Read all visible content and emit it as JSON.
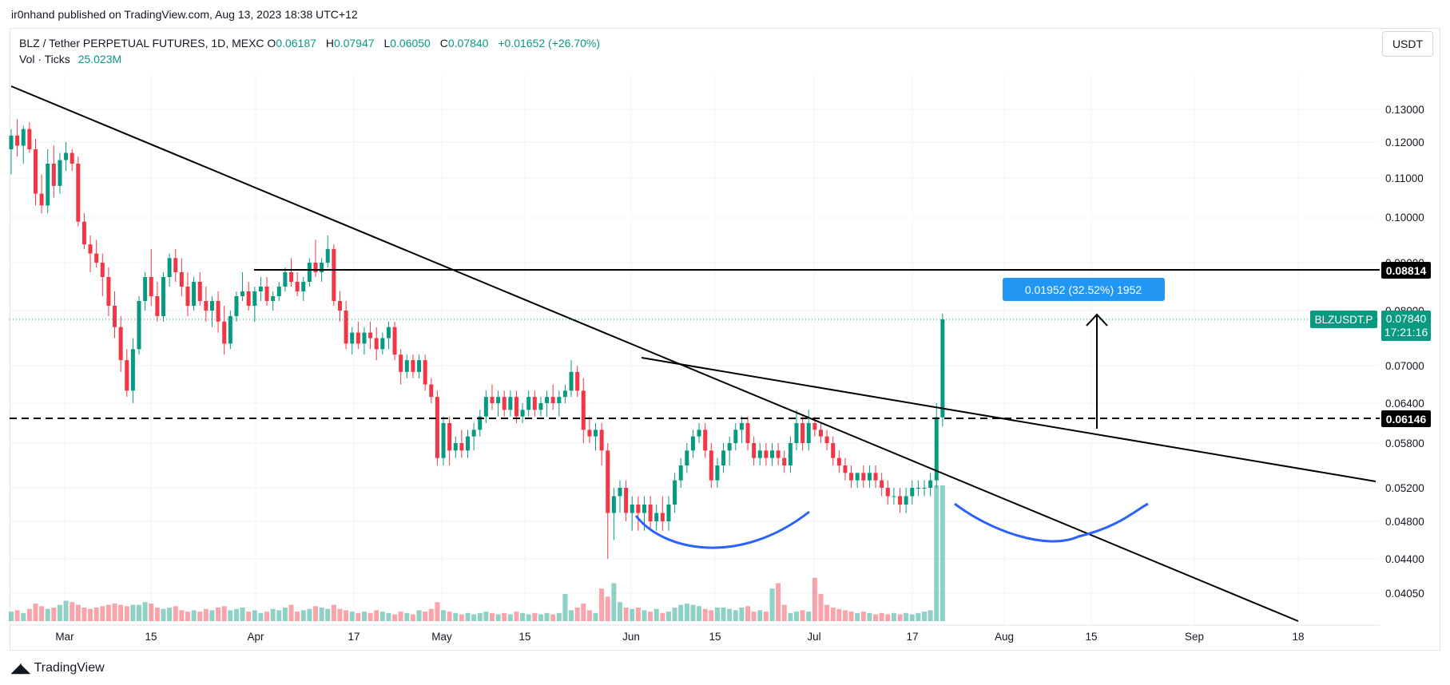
{
  "header": {
    "published": "ir0nhand published on TradingView.com, Aug 13, 2023 18:38 UTC+12"
  },
  "legend": {
    "symbol": "BLZ / Tether PERPETUAL FUTURES, 1D, MEXC",
    "o_label": "O",
    "o": "0.06187",
    "h_label": "H",
    "h": "0.07947",
    "l_label": "L",
    "l": "0.06050",
    "c_label": "C",
    "c": "0.07840",
    "change": "+0.01652 (+26.70%)",
    "vol_label": "Vol · Ticks",
    "vol": "25.023M"
  },
  "currency_button": "USDT",
  "footer": {
    "brand": "TradingView"
  },
  "colors": {
    "up": "#089981",
    "down": "#f23645",
    "measure": "#2962ff",
    "curve": "#2962ff"
  },
  "chart_data": {
    "type": "candlestick",
    "title": "BLZ / Tether PERPETUAL FUTURES, 1D, MEXC",
    "y_ticks": [
      "0.13000",
      "0.12000",
      "0.11000",
      "0.10000",
      "0.09000",
      "0.08000",
      "0.07000",
      "0.06400",
      "0.05800",
      "0.05200",
      "0.04800",
      "0.04400",
      "0.04050"
    ],
    "x_ticks": [
      "Mar",
      "15",
      "Apr",
      "17",
      "May",
      "15",
      "Jun",
      "15",
      "Jul",
      "17",
      "Aug",
      "15",
      "Sep",
      "18"
    ],
    "ohlc": [
      [
        0.118,
        0.124,
        0.111,
        0.122
      ],
      [
        0.122,
        0.127,
        0.116,
        0.119
      ],
      [
        0.119,
        0.125,
        0.114,
        0.124
      ],
      [
        0.124,
        0.126,
        0.117,
        0.118
      ],
      [
        0.118,
        0.121,
        0.103,
        0.106
      ],
      [
        0.106,
        0.111,
        0.101,
        0.103
      ],
      [
        0.103,
        0.118,
        0.101,
        0.114
      ],
      [
        0.114,
        0.119,
        0.105,
        0.108
      ],
      [
        0.108,
        0.117,
        0.106,
        0.115
      ],
      [
        0.115,
        0.12,
        0.112,
        0.117
      ],
      [
        0.117,
        0.118,
        0.112,
        0.114
      ],
      [
        0.114,
        0.116,
        0.098,
        0.099
      ],
      [
        0.099,
        0.101,
        0.093,
        0.094
      ],
      [
        0.094,
        0.096,
        0.088,
        0.092
      ],
      [
        0.092,
        0.095,
        0.089,
        0.09
      ],
      [
        0.09,
        0.092,
        0.083,
        0.087
      ],
      [
        0.087,
        0.089,
        0.079,
        0.081
      ],
      [
        0.081,
        0.084,
        0.075,
        0.077
      ],
      [
        0.077,
        0.079,
        0.069,
        0.071
      ],
      [
        0.071,
        0.073,
        0.065,
        0.066
      ],
      [
        0.066,
        0.075,
        0.064,
        0.073
      ],
      [
        0.073,
        0.083,
        0.072,
        0.082
      ],
      [
        0.082,
        0.088,
        0.08,
        0.087
      ],
      [
        0.087,
        0.093,
        0.081,
        0.083
      ],
      [
        0.083,
        0.086,
        0.078,
        0.079
      ],
      [
        0.079,
        0.088,
        0.078,
        0.087
      ],
      [
        0.087,
        0.092,
        0.085,
        0.091
      ],
      [
        0.091,
        0.093,
        0.086,
        0.088
      ],
      [
        0.088,
        0.091,
        0.083,
        0.085
      ],
      [
        0.085,
        0.088,
        0.079,
        0.081
      ],
      [
        0.081,
        0.087,
        0.08,
        0.086
      ],
      [
        0.086,
        0.088,
        0.081,
        0.082
      ],
      [
        0.082,
        0.085,
        0.078,
        0.08
      ],
      [
        0.08,
        0.083,
        0.077,
        0.082
      ],
      [
        0.082,
        0.084,
        0.076,
        0.078
      ],
      [
        0.078,
        0.081,
        0.072,
        0.074
      ],
      [
        0.074,
        0.08,
        0.073,
        0.079
      ],
      [
        0.079,
        0.084,
        0.078,
        0.083
      ],
      [
        0.083,
        0.088,
        0.082,
        0.084
      ],
      [
        0.084,
        0.086,
        0.08,
        0.081
      ],
      [
        0.081,
        0.085,
        0.078,
        0.084
      ],
      [
        0.084,
        0.087,
        0.082,
        0.085
      ],
      [
        0.085,
        0.087,
        0.081,
        0.082
      ],
      [
        0.082,
        0.084,
        0.08,
        0.083
      ],
      [
        0.083,
        0.086,
        0.082,
        0.085
      ],
      [
        0.085,
        0.089,
        0.084,
        0.088
      ],
      [
        0.088,
        0.091,
        0.085,
        0.086
      ],
      [
        0.086,
        0.088,
        0.083,
        0.084
      ],
      [
        0.084,
        0.087,
        0.082,
        0.086
      ],
      [
        0.086,
        0.091,
        0.085,
        0.09
      ],
      [
        0.09,
        0.095,
        0.087,
        0.088
      ],
      [
        0.088,
        0.091,
        0.086,
        0.09
      ],
      [
        0.09,
        0.096,
        0.089,
        0.093
      ],
      [
        0.093,
        0.094,
        0.081,
        0.082
      ],
      [
        0.082,
        0.084,
        0.078,
        0.08
      ],
      [
        0.08,
        0.082,
        0.073,
        0.074
      ],
      [
        0.074,
        0.077,
        0.072,
        0.076
      ],
      [
        0.076,
        0.078,
        0.073,
        0.074
      ],
      [
        0.074,
        0.077,
        0.072,
        0.076
      ],
      [
        0.076,
        0.078,
        0.073,
        0.075
      ],
      [
        0.075,
        0.077,
        0.071,
        0.073
      ],
      [
        0.073,
        0.076,
        0.072,
        0.075
      ],
      [
        0.075,
        0.078,
        0.073,
        0.077
      ],
      [
        0.077,
        0.078,
        0.071,
        0.072
      ],
      [
        0.072,
        0.073,
        0.067,
        0.069
      ],
      [
        0.069,
        0.072,
        0.068,
        0.071
      ],
      [
        0.071,
        0.072,
        0.068,
        0.069
      ],
      [
        0.069,
        0.072,
        0.068,
        0.071
      ],
      [
        0.071,
        0.072,
        0.066,
        0.067
      ],
      [
        0.067,
        0.068,
        0.064,
        0.065
      ],
      [
        0.065,
        0.066,
        0.055,
        0.056
      ],
      [
        0.056,
        0.062,
        0.055,
        0.061
      ],
      [
        0.061,
        0.062,
        0.055,
        0.057
      ],
      [
        0.057,
        0.059,
        0.056,
        0.058
      ],
      [
        0.058,
        0.06,
        0.056,
        0.057
      ],
      [
        0.057,
        0.06,
        0.056,
        0.059
      ],
      [
        0.059,
        0.061,
        0.057,
        0.06
      ],
      [
        0.06,
        0.063,
        0.059,
        0.062
      ],
      [
        0.062,
        0.066,
        0.061,
        0.065
      ],
      [
        0.065,
        0.067,
        0.063,
        0.064
      ],
      [
        0.064,
        0.066,
        0.062,
        0.065
      ],
      [
        0.065,
        0.066,
        0.062,
        0.063
      ],
      [
        0.063,
        0.066,
        0.062,
        0.065
      ],
      [
        0.065,
        0.066,
        0.061,
        0.062
      ],
      [
        0.062,
        0.064,
        0.061,
        0.063
      ],
      [
        0.063,
        0.066,
        0.062,
        0.065
      ],
      [
        0.065,
        0.066,
        0.062,
        0.063
      ],
      [
        0.063,
        0.065,
        0.062,
        0.064
      ],
      [
        0.064,
        0.066,
        0.062,
        0.065
      ],
      [
        0.065,
        0.067,
        0.063,
        0.064
      ],
      [
        0.064,
        0.066,
        0.062,
        0.065
      ],
      [
        0.065,
        0.067,
        0.064,
        0.066
      ],
      [
        0.066,
        0.071,
        0.065,
        0.069
      ],
      [
        0.069,
        0.07,
        0.065,
        0.066
      ],
      [
        0.066,
        0.068,
        0.058,
        0.06
      ],
      [
        0.06,
        0.062,
        0.058,
        0.059
      ],
      [
        0.059,
        0.061,
        0.057,
        0.06
      ],
      [
        0.06,
        0.061,
        0.055,
        0.057
      ],
      [
        0.057,
        0.058,
        0.044,
        0.049
      ],
      [
        0.049,
        0.052,
        0.046,
        0.051
      ],
      [
        0.051,
        0.053,
        0.049,
        0.052
      ],
      [
        0.052,
        0.053,
        0.048,
        0.049
      ],
      [
        0.049,
        0.051,
        0.047,
        0.05
      ],
      [
        0.05,
        0.051,
        0.047,
        0.049
      ],
      [
        0.049,
        0.051,
        0.047,
        0.05
      ],
      [
        0.05,
        0.051,
        0.047,
        0.048
      ],
      [
        0.048,
        0.05,
        0.047,
        0.049
      ],
      [
        0.049,
        0.051,
        0.047,
        0.048
      ],
      [
        0.048,
        0.051,
        0.047,
        0.05
      ],
      [
        0.05,
        0.054,
        0.049,
        0.053
      ],
      [
        0.053,
        0.056,
        0.052,
        0.055
      ],
      [
        0.055,
        0.058,
        0.054,
        0.057
      ],
      [
        0.057,
        0.06,
        0.056,
        0.059
      ],
      [
        0.059,
        0.061,
        0.058,
        0.06
      ],
      [
        0.06,
        0.061,
        0.056,
        0.057
      ],
      [
        0.057,
        0.058,
        0.052,
        0.053
      ],
      [
        0.053,
        0.056,
        0.052,
        0.055
      ],
      [
        0.055,
        0.058,
        0.054,
        0.057
      ],
      [
        0.057,
        0.059,
        0.055,
        0.058
      ],
      [
        0.058,
        0.061,
        0.057,
        0.06
      ],
      [
        0.06,
        0.062,
        0.058,
        0.061
      ],
      [
        0.061,
        0.062,
        0.057,
        0.058
      ],
      [
        0.058,
        0.059,
        0.055,
        0.056
      ],
      [
        0.056,
        0.058,
        0.055,
        0.057
      ],
      [
        0.057,
        0.058,
        0.055,
        0.056
      ],
      [
        0.056,
        0.058,
        0.055,
        0.057
      ],
      [
        0.057,
        0.058,
        0.055,
        0.056
      ],
      [
        0.056,
        0.057,
        0.054,
        0.055
      ],
      [
        0.055,
        0.059,
        0.054,
        0.058
      ],
      [
        0.058,
        0.063,
        0.057,
        0.061
      ],
      [
        0.061,
        0.062,
        0.057,
        0.058
      ],
      [
        0.058,
        0.063,
        0.057,
        0.061
      ],
      [
        0.061,
        0.062,
        0.059,
        0.06
      ],
      [
        0.06,
        0.061,
        0.058,
        0.059
      ],
      [
        0.059,
        0.06,
        0.057,
        0.058
      ],
      [
        0.058,
        0.059,
        0.055,
        0.056
      ],
      [
        0.056,
        0.057,
        0.054,
        0.055
      ],
      [
        0.055,
        0.056,
        0.053,
        0.054
      ],
      [
        0.054,
        0.055,
        0.052,
        0.053
      ],
      [
        0.053,
        0.054,
        0.052,
        0.054
      ],
      [
        0.054,
        0.055,
        0.052,
        0.053
      ],
      [
        0.053,
        0.055,
        0.052,
        0.054
      ],
      [
        0.054,
        0.055,
        0.052,
        0.053
      ],
      [
        0.053,
        0.054,
        0.051,
        0.052
      ],
      [
        0.052,
        0.053,
        0.05,
        0.051
      ],
      [
        0.051,
        0.052,
        0.05,
        0.051
      ],
      [
        0.051,
        0.052,
        0.049,
        0.05
      ],
      [
        0.05,
        0.052,
        0.049,
        0.051
      ],
      [
        0.051,
        0.053,
        0.05,
        0.052
      ],
      [
        0.052,
        0.053,
        0.051,
        0.052
      ],
      [
        0.052,
        0.053,
        0.051,
        0.052
      ],
      [
        0.052,
        0.054,
        0.051,
        0.053
      ],
      [
        0.053,
        0.064,
        0.052,
        0.0619
      ],
      [
        0.06187,
        0.07947,
        0.0605,
        0.0784
      ]
    ],
    "volume_heights": [
      0.07,
      0.08,
      0.06,
      0.09,
      0.13,
      0.11,
      0.09,
      0.1,
      0.12,
      0.15,
      0.14,
      0.12,
      0.1,
      0.09,
      0.1,
      0.11,
      0.12,
      0.13,
      0.12,
      0.11,
      0.12,
      0.12,
      0.14,
      0.13,
      0.1,
      0.09,
      0.1,
      0.11,
      0.08,
      0.07,
      0.08,
      0.07,
      0.09,
      0.08,
      0.1,
      0.11,
      0.08,
      0.09,
      0.1,
      0.07,
      0.08,
      0.06,
      0.07,
      0.09,
      0.08,
      0.1,
      0.12,
      0.07,
      0.08,
      0.09,
      0.11,
      0.1,
      0.09,
      0.12,
      0.09,
      0.08,
      0.07,
      0.06,
      0.07,
      0.06,
      0.08,
      0.07,
      0.06,
      0.05,
      0.07,
      0.06,
      0.05,
      0.08,
      0.07,
      0.09,
      0.14,
      0.08,
      0.07,
      0.06,
      0.05,
      0.06,
      0.05,
      0.06,
      0.07,
      0.06,
      0.05,
      0.06,
      0.05,
      0.07,
      0.06,
      0.05,
      0.06,
      0.05,
      0.06,
      0.05,
      0.06,
      0.2,
      0.08,
      0.1,
      0.13,
      0.08,
      0.06,
      0.24,
      0.18,
      0.28,
      0.14,
      0.1,
      0.09,
      0.1,
      0.08,
      0.07,
      0.09,
      0.06,
      0.07,
      0.1,
      0.12,
      0.13,
      0.12,
      0.11,
      0.09,
      0.08,
      0.1,
      0.1,
      0.09,
      0.08,
      0.1,
      0.11,
      0.07,
      0.08,
      0.07,
      0.24,
      0.28,
      0.12,
      0.06,
      0.07,
      0.08,
      0.07,
      0.32,
      0.2,
      0.12,
      0.1,
      0.09,
      0.08,
      0.07,
      0.06,
      0.07,
      0.06,
      0.05,
      0.06,
      0.05,
      0.06,
      0.05,
      0.06,
      0.05,
      0.06,
      0.07,
      0.08,
      1.0,
      1.0
    ],
    "annotations": {
      "resistance_label": "0.08814",
      "support_label": "0.06146",
      "last_price_label": "0.07840",
      "countdown": "17:21:16",
      "symbol_tag": "BLZUSDT.P",
      "measure_label": "0.01952 (32.52%) 1952"
    }
  }
}
